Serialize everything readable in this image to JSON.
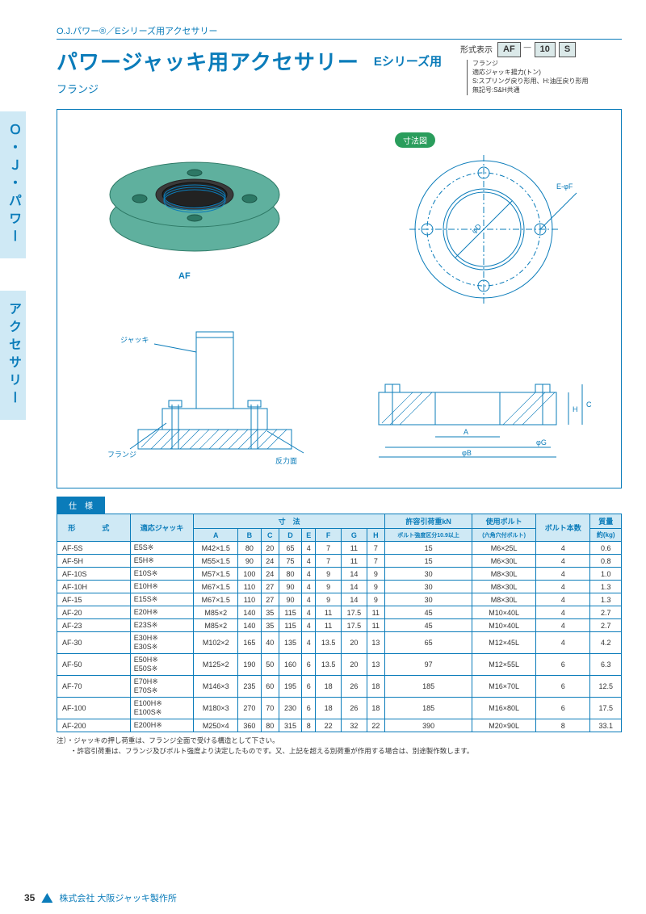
{
  "header": {
    "topline": "O.J.パワー®／Eシリーズ用アクセサリー",
    "title_main": "パワージャッキ用アクセサリー",
    "title_sub": "Eシリーズ用",
    "subtitle": "フランジ"
  },
  "format": {
    "label": "形式表示",
    "codes": [
      "AF",
      "10",
      "S"
    ],
    "lines": [
      "フランジ",
      "適応ジャッキ揚力(トン)",
      "S:スプリング戻り形用、H:油圧戻り形用",
      "無記号:S&H共通"
    ]
  },
  "sidetab": {
    "tab1": "Ｏ・Ｊ・パワー",
    "tab2": "アクセサリー"
  },
  "diagrams": {
    "photo_label": "AF",
    "dim_badge": "寸法図",
    "labels": {
      "jack": "ジャッキ",
      "flange": "フランジ",
      "reaction": "反力面",
      "E_phiF": "E-φF",
      "phiD": "φD",
      "phiB": "φB",
      "phiG": "φG",
      "A": "A",
      "C": "C",
      "H": "H"
    },
    "colors": {
      "line": "#0b7cba",
      "flange_fill": "#5fb09e",
      "flange_stroke": "#2d7865",
      "thread_fill": "#3a3a3a"
    }
  },
  "spec_label": "仕　様",
  "table": {
    "headers": {
      "model": "形　式",
      "jack": "適応ジャッキ",
      "dims": "寸　法",
      "dim_cols": [
        "A",
        "B",
        "C",
        "D",
        "E",
        "F",
        "G",
        "H"
      ],
      "load": "許容引荷重kN",
      "load_sub": "ボルト強度区分10.9以上",
      "bolt": "使用ボルト",
      "bolt_sub": "(六角穴付ボルト)",
      "bolt_qty": "ボルト本数",
      "mass": "質量",
      "mass_sub": "約(kg)"
    },
    "rows": [
      {
        "model": "AF-5S",
        "jack": "E5S※",
        "A": "M42×1.5",
        "B": "80",
        "C": "20",
        "D": "65",
        "E": "4",
        "F": "7",
        "G": "11",
        "H": "7",
        "load": "15",
        "bolt": "M6×25L",
        "qty": "4",
        "mass": "0.6"
      },
      {
        "model": "AF-5H",
        "jack": "E5H※",
        "A": "M55×1.5",
        "B": "90",
        "C": "24",
        "D": "75",
        "E": "4",
        "F": "7",
        "G": "11",
        "H": "7",
        "load": "15",
        "bolt": "M6×30L",
        "qty": "4",
        "mass": "0.8"
      },
      {
        "model": "AF-10S",
        "jack": "E10S※",
        "A": "M57×1.5",
        "B": "100",
        "C": "24",
        "D": "80",
        "E": "4",
        "F": "9",
        "G": "14",
        "H": "9",
        "load": "30",
        "bolt": "M8×30L",
        "qty": "4",
        "mass": "1.0"
      },
      {
        "model": "AF-10H",
        "jack": "E10H※",
        "A": "M67×1.5",
        "B": "110",
        "C": "27",
        "D": "90",
        "E": "4",
        "F": "9",
        "G": "14",
        "H": "9",
        "load": "30",
        "bolt": "M8×30L",
        "qty": "4",
        "mass": "1.3"
      },
      {
        "model": "AF-15",
        "jack": "E15S※",
        "A": "M67×1.5",
        "B": "110",
        "C": "27",
        "D": "90",
        "E": "4",
        "F": "9",
        "G": "14",
        "H": "9",
        "load": "30",
        "bolt": "M8×30L",
        "qty": "4",
        "mass": "1.3"
      },
      {
        "model": "AF-20",
        "jack": "E20H※",
        "A": "M85×2",
        "B": "140",
        "C": "35",
        "D": "115",
        "E": "4",
        "F": "11",
        "G": "17.5",
        "H": "11",
        "load": "45",
        "bolt": "M10×40L",
        "qty": "4",
        "mass": "2.7"
      },
      {
        "model": "AF-23",
        "jack": "E23S※",
        "A": "M85×2",
        "B": "140",
        "C": "35",
        "D": "115",
        "E": "4",
        "F": "11",
        "G": "17.5",
        "H": "11",
        "load": "45",
        "bolt": "M10×40L",
        "qty": "4",
        "mass": "2.7"
      },
      {
        "model": "AF-30",
        "jack": "E30H※\nE30S※",
        "A": "M102×2",
        "B": "165",
        "C": "40",
        "D": "135",
        "E": "4",
        "F": "13.5",
        "G": "20",
        "H": "13",
        "load": "65",
        "bolt": "M12×45L",
        "qty": "4",
        "mass": "4.2"
      },
      {
        "model": "AF-50",
        "jack": "E50H※\nE50S※",
        "A": "M125×2",
        "B": "190",
        "C": "50",
        "D": "160",
        "E": "6",
        "F": "13.5",
        "G": "20",
        "H": "13",
        "load": "97",
        "bolt": "M12×55L",
        "qty": "6",
        "mass": "6.3"
      },
      {
        "model": "AF-70",
        "jack": "E70H※\nE70S※",
        "A": "M146×3",
        "B": "235",
        "C": "60",
        "D": "195",
        "E": "6",
        "F": "18",
        "G": "26",
        "H": "18",
        "load": "185",
        "bolt": "M16×70L",
        "qty": "6",
        "mass": "12.5"
      },
      {
        "model": "AF-100",
        "jack": "E100H※\nE100S※",
        "A": "M180×3",
        "B": "270",
        "C": "70",
        "D": "230",
        "E": "6",
        "F": "18",
        "G": "26",
        "H": "18",
        "load": "185",
        "bolt": "M16×80L",
        "qty": "6",
        "mass": "17.5"
      },
      {
        "model": "AF-200",
        "jack": "E200H※",
        "A": "M250×4",
        "B": "360",
        "C": "80",
        "D": "315",
        "E": "8",
        "F": "22",
        "G": "32",
        "H": "22",
        "load": "390",
        "bolt": "M20×90L",
        "qty": "8",
        "mass": "33.1"
      }
    ]
  },
  "notes": [
    "注）・ジャッキの押し荷重は、フランジ全面で受ける構造として下さい。",
    "　　・許容引荷重は、フランジ及びボルト強度より決定したものです。又、上記を超える別荷重が作用する場合は、別途製作致します。"
  ],
  "footer": {
    "page_number": "35",
    "brand": "株式会社 大阪ジャッキ製作所"
  }
}
